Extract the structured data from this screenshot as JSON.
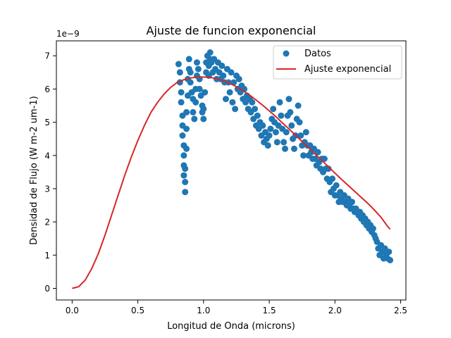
{
  "chart_data": {
    "type": "scatter",
    "title": "Ajuste de funcion exponencial",
    "xlabel": "Longitud de Onda (microns)",
    "ylabel": "Densidad de Flujo (W m-2 um-1)",
    "y_offset_label": "1e−9",
    "xlim": [
      -0.12,
      2.54
    ],
    "ylim": [
      -0.35,
      7.45
    ],
    "xticks": [
      {
        "value": 0.0,
        "label": "0.0"
      },
      {
        "value": 0.5,
        "label": "0.5"
      },
      {
        "value": 1.0,
        "label": "1.0"
      },
      {
        "value": 1.5,
        "label": "1.5"
      },
      {
        "value": 2.0,
        "label": "2.0"
      },
      {
        "value": 2.5,
        "label": "2.5"
      }
    ],
    "yticks": [
      {
        "value": 0,
        "label": "0"
      },
      {
        "value": 1,
        "label": "1"
      },
      {
        "value": 2,
        "label": "2"
      },
      {
        "value": 3,
        "label": "3"
      },
      {
        "value": 4,
        "label": "4"
      },
      {
        "value": 5,
        "label": "5"
      },
      {
        "value": 6,
        "label": "6"
      },
      {
        "value": 7,
        "label": "7"
      }
    ],
    "grid": false,
    "legend": {
      "placement": "top-right",
      "entries": [
        {
          "label": "Datos",
          "marker": "circle",
          "color": "#1f77b4"
        },
        {
          "label": "Ajuste exponencial",
          "marker": "line",
          "color": "#d62728"
        }
      ]
    },
    "series": [
      {
        "name": "Datos",
        "kind": "scatter",
        "color": "#1f77b4",
        "points": [
          [
            0.81,
            6.75
          ],
          [
            0.82,
            6.5
          ],
          [
            0.82,
            6.2
          ],
          [
            0.83,
            5.9
          ],
          [
            0.83,
            5.6
          ],
          [
            0.84,
            5.2
          ],
          [
            0.84,
            4.9
          ],
          [
            0.84,
            4.6
          ],
          [
            0.85,
            4.3
          ],
          [
            0.85,
            4.0
          ],
          [
            0.85,
            3.7
          ],
          [
            0.85,
            3.4
          ],
          [
            0.86,
            3.2
          ],
          [
            0.86,
            2.9
          ],
          [
            0.86,
            3.6
          ],
          [
            0.87,
            4.2
          ],
          [
            0.87,
            4.8
          ],
          [
            0.87,
            5.3
          ],
          [
            0.88,
            5.8
          ],
          [
            0.88,
            6.3
          ],
          [
            0.89,
            6.6
          ],
          [
            0.89,
            6.9
          ],
          [
            0.9,
            6.5
          ],
          [
            0.9,
            6.2
          ],
          [
            0.91,
            5.9
          ],
          [
            0.92,
            5.7
          ],
          [
            0.92,
            5.3
          ],
          [
            0.93,
            5.1
          ],
          [
            0.94,
            5.6
          ],
          [
            0.94,
            6.0
          ],
          [
            0.95,
            6.4
          ],
          [
            0.95,
            6.8
          ],
          [
            0.96,
            6.6
          ],
          [
            0.97,
            6.3
          ],
          [
            0.97,
            6.0
          ],
          [
            0.98,
            5.8
          ],
          [
            0.99,
            5.5
          ],
          [
            0.99,
            5.3
          ],
          [
            1.0,
            5.1
          ],
          [
            1.0,
            5.4
          ],
          [
            1.01,
            5.9
          ],
          [
            1.02,
            6.5
          ],
          [
            1.02,
            6.8
          ],
          [
            1.03,
            7.0
          ],
          [
            1.04,
            6.7
          ],
          [
            1.04,
            6.4
          ],
          [
            1.05,
            6.9
          ],
          [
            1.05,
            7.1
          ],
          [
            1.06,
            6.8
          ],
          [
            1.07,
            6.5
          ],
          [
            1.08,
            6.9
          ],
          [
            1.09,
            6.6
          ],
          [
            1.1,
            6.3
          ],
          [
            1.11,
            6.8
          ],
          [
            1.12,
            6.5
          ],
          [
            1.13,
            6.3
          ],
          [
            1.14,
            6.7
          ],
          [
            1.15,
            6.4
          ],
          [
            1.16,
            6.2
          ],
          [
            1.17,
            5.7
          ],
          [
            1.18,
            6.6
          ],
          [
            1.19,
            6.2
          ],
          [
            1.2,
            5.9
          ],
          [
            1.21,
            6.5
          ],
          [
            1.22,
            5.6
          ],
          [
            1.23,
            6.2
          ],
          [
            1.24,
            5.4
          ],
          [
            1.25,
            6.4
          ],
          [
            1.26,
            6.0
          ],
          [
            1.27,
            6.3
          ],
          [
            1.28,
            5.9
          ],
          [
            1.29,
            6.1
          ],
          [
            1.3,
            5.7
          ],
          [
            1.31,
            6.0
          ],
          [
            1.32,
            5.6
          ],
          [
            1.33,
            5.8
          ],
          [
            1.34,
            5.4
          ],
          [
            1.35,
            5.7
          ],
          [
            1.36,
            5.3
          ],
          [
            1.37,
            5.6
          ],
          [
            1.38,
            5.1
          ],
          [
            1.39,
            5.4
          ],
          [
            1.4,
            4.9
          ],
          [
            1.41,
            5.2
          ],
          [
            1.42,
            4.8
          ],
          [
            1.43,
            5.0
          ],
          [
            1.44,
            4.6
          ],
          [
            1.45,
            4.9
          ],
          [
            1.46,
            4.4
          ],
          [
            1.47,
            4.7
          ],
          [
            1.48,
            4.5
          ],
          [
            1.49,
            4.3
          ],
          [
            1.5,
            4.6
          ],
          [
            1.51,
            4.8
          ],
          [
            1.52,
            5.1
          ],
          [
            1.53,
            5.4
          ],
          [
            1.54,
            5.0
          ],
          [
            1.55,
            4.7
          ],
          [
            1.56,
            4.4
          ],
          [
            1.57,
            4.9
          ],
          [
            1.58,
            5.6
          ],
          [
            1.59,
            5.2
          ],
          [
            1.6,
            4.8
          ],
          [
            1.61,
            4.4
          ],
          [
            1.62,
            4.2
          ],
          [
            1.63,
            4.7
          ],
          [
            1.64,
            5.2
          ],
          [
            1.65,
            5.7
          ],
          [
            1.66,
            5.3
          ],
          [
            1.67,
            4.9
          ],
          [
            1.68,
            4.5
          ],
          [
            1.69,
            4.2
          ],
          [
            1.7,
            4.6
          ],
          [
            1.71,
            5.1
          ],
          [
            1.72,
            5.5
          ],
          [
            1.73,
            5.0
          ],
          [
            1.74,
            4.6
          ],
          [
            1.75,
            4.3
          ],
          [
            1.76,
            4.0
          ],
          [
            1.77,
            4.4
          ],
          [
            1.78,
            4.7
          ],
          [
            1.79,
            4.3
          ],
          [
            1.8,
            4.0
          ],
          [
            1.81,
            4.3
          ],
          [
            1.82,
            4.1
          ],
          [
            1.83,
            3.9
          ],
          [
            1.84,
            4.2
          ],
          [
            1.85,
            3.9
          ],
          [
            1.86,
            3.7
          ],
          [
            1.87,
            4.1
          ],
          [
            1.88,
            3.8
          ],
          [
            1.89,
            3.6
          ],
          [
            1.9,
            3.9
          ],
          [
            1.91,
            3.5
          ],
          [
            1.92,
            3.9
          ],
          [
            1.93,
            3.6
          ],
          [
            1.94,
            3.3
          ],
          [
            1.95,
            3.6
          ],
          [
            1.96,
            3.2
          ],
          [
            1.97,
            2.9
          ],
          [
            1.98,
            3.3
          ],
          [
            1.99,
            3.0
          ],
          [
            2.0,
            2.8
          ],
          [
            2.01,
            3.1
          ],
          [
            2.02,
            2.8
          ],
          [
            2.03,
            2.6
          ],
          [
            2.04,
            2.9
          ],
          [
            2.05,
            2.7
          ],
          [
            2.06,
            2.6
          ],
          [
            2.07,
            2.8
          ],
          [
            2.08,
            2.6
          ],
          [
            2.09,
            2.5
          ],
          [
            2.1,
            2.7
          ],
          [
            2.11,
            2.5
          ],
          [
            2.12,
            2.4
          ],
          [
            2.13,
            2.6
          ],
          [
            2.14,
            2.4
          ],
          [
            2.15,
            2.3
          ],
          [
            2.16,
            2.4
          ],
          [
            2.17,
            2.3
          ],
          [
            2.18,
            2.2
          ],
          [
            2.19,
            2.3
          ],
          [
            2.2,
            2.1
          ],
          [
            2.21,
            2.2
          ],
          [
            2.22,
            2.0
          ],
          [
            2.23,
            2.1
          ],
          [
            2.24,
            1.9
          ],
          [
            2.25,
            2.0
          ],
          [
            2.26,
            1.8
          ],
          [
            2.27,
            1.9
          ],
          [
            2.28,
            1.7
          ],
          [
            2.29,
            1.8
          ],
          [
            2.3,
            1.6
          ],
          [
            2.31,
            1.5
          ],
          [
            2.32,
            1.4
          ],
          [
            2.33,
            1.2
          ],
          [
            2.34,
            1.0
          ],
          [
            2.35,
            1.3
          ],
          [
            2.36,
            1.1
          ],
          [
            2.37,
            0.9
          ],
          [
            2.38,
            1.2
          ],
          [
            2.39,
            1.0
          ],
          [
            2.4,
            0.9
          ],
          [
            2.41,
            1.1
          ],
          [
            2.42,
            0.85
          ]
        ]
      },
      {
        "name": "Ajuste exponencial",
        "kind": "line",
        "color": "#d62728",
        "points": [
          [
            0.0,
            0.0
          ],
          [
            0.05,
            0.05
          ],
          [
            0.1,
            0.25
          ],
          [
            0.15,
            0.6
          ],
          [
            0.2,
            1.05
          ],
          [
            0.25,
            1.6
          ],
          [
            0.3,
            2.2
          ],
          [
            0.35,
            2.8
          ],
          [
            0.4,
            3.4
          ],
          [
            0.45,
            3.95
          ],
          [
            0.5,
            4.45
          ],
          [
            0.55,
            4.9
          ],
          [
            0.6,
            5.3
          ],
          [
            0.65,
            5.6
          ],
          [
            0.7,
            5.85
          ],
          [
            0.75,
            6.05
          ],
          [
            0.8,
            6.2
          ],
          [
            0.85,
            6.28
          ],
          [
            0.9,
            6.33
          ],
          [
            0.95,
            6.36
          ],
          [
            1.0,
            6.36
          ],
          [
            1.05,
            6.35
          ],
          [
            1.1,
            6.31
          ],
          [
            1.15,
            6.25
          ],
          [
            1.2,
            6.17
          ],
          [
            1.25,
            6.07
          ],
          [
            1.3,
            5.95
          ],
          [
            1.35,
            5.82
          ],
          [
            1.4,
            5.67
          ],
          [
            1.45,
            5.51
          ],
          [
            1.5,
            5.34
          ],
          [
            1.55,
            5.17
          ],
          [
            1.6,
            4.98
          ],
          [
            1.65,
            4.8
          ],
          [
            1.7,
            4.61
          ],
          [
            1.75,
            4.42
          ],
          [
            1.8,
            4.23
          ],
          [
            1.85,
            4.04
          ],
          [
            1.9,
            3.85
          ],
          [
            1.95,
            3.66
          ],
          [
            2.0,
            3.47
          ],
          [
            2.05,
            3.28
          ],
          [
            2.1,
            3.1
          ],
          [
            2.15,
            2.92
          ],
          [
            2.2,
            2.74
          ],
          [
            2.25,
            2.56
          ],
          [
            2.3,
            2.36
          ],
          [
            2.35,
            2.14
          ],
          [
            2.4,
            1.87
          ],
          [
            2.42,
            1.78
          ]
        ]
      }
    ]
  }
}
